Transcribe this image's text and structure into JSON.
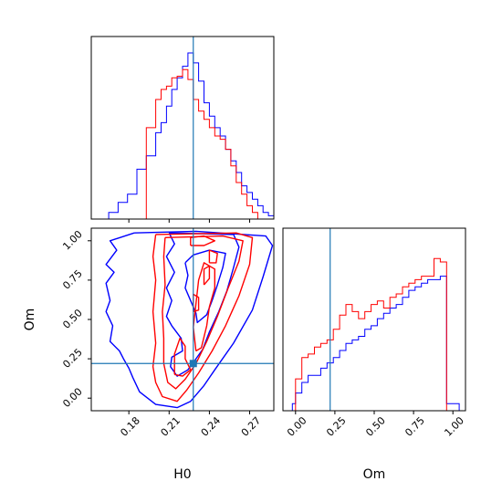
{
  "chart_data": [
    {
      "type": "step-histogram",
      "panel": "H0 marginal",
      "bin_edges": [
        0.165,
        0.172,
        0.179,
        0.186,
        0.193,
        0.2,
        0.204,
        0.208,
        0.212,
        0.216,
        0.22,
        0.224,
        0.228,
        0.232,
        0.236,
        0.24,
        0.244,
        0.248,
        0.252,
        0.256,
        0.26,
        0.264,
        0.268,
        0.272,
        0.276,
        0.28,
        0.284,
        0.288
      ],
      "series": [
        {
          "color": "#0000ff",
          "values": [
            0.04,
            0.1,
            0.15,
            0.3,
            0.38,
            0.52,
            0.58,
            0.68,
            0.78,
            0.85,
            0.92,
            1.0,
            0.94,
            0.83,
            0.7,
            0.62,
            0.55,
            0.5,
            0.42,
            0.35,
            0.28,
            0.2,
            0.16,
            0.12,
            0.08,
            0.04,
            0.02
          ]
        },
        {
          "color": "#ff0000",
          "values": [
            0,
            0,
            0,
            0,
            0.55,
            0.72,
            0.78,
            0.8,
            0.85,
            0.86,
            0.9,
            0.84,
            0.72,
            0.65,
            0.6,
            0.55,
            0.5,
            0.48,
            0.42,
            0.32,
            0.22,
            0.15,
            0.08,
            0.04,
            0,
            0,
            0
          ]
        }
      ],
      "truth_line": 0.228
    },
    {
      "type": "contour",
      "panel": "H0 vs Om",
      "xlabel": "H0",
      "ylabel": "Om",
      "xlim": [
        0.152,
        0.288
      ],
      "ylim": [
        -0.08,
        1.08
      ],
      "xticks": [
        "0.18",
        "0.21",
        "0.24",
        "0.27"
      ],
      "yticks": [
        "0.00",
        "0.25",
        "0.50",
        "0.75",
        "1.00"
      ],
      "truth_point": [
        0.228,
        0.22
      ],
      "contours": [
        {
          "color": "#0000ff",
          "points": [
            [
              0.184,
              1.05
            ],
            [
              0.166,
              1.0
            ],
            [
              0.171,
              0.94
            ],
            [
              0.163,
              0.85
            ],
            [
              0.169,
              0.8
            ],
            [
              0.163,
              0.73
            ],
            [
              0.166,
              0.62
            ],
            [
              0.163,
              0.55
            ],
            [
              0.168,
              0.46
            ],
            [
              0.166,
              0.36
            ],
            [
              0.173,
              0.3
            ],
            [
              0.176,
              0.25
            ],
            [
              0.18,
              0.19
            ],
            [
              0.183,
              0.13
            ],
            [
              0.188,
              0.04
            ],
            [
              0.2,
              -0.04
            ],
            [
              0.216,
              -0.06
            ],
            [
              0.226,
              -0.02
            ],
            [
              0.236,
              0.08
            ],
            [
              0.244,
              0.18
            ],
            [
              0.258,
              0.35
            ],
            [
              0.272,
              0.56
            ],
            [
              0.28,
              0.77
            ],
            [
              0.287,
              0.97
            ],
            [
              0.282,
              1.03
            ],
            [
              0.23,
              1.06
            ],
            [
              0.184,
              1.05
            ]
          ]
        },
        {
          "color": "#0000ff",
          "points": [
            [
              0.21,
              1.05
            ],
            [
              0.214,
              0.98
            ],
            [
              0.208,
              0.9
            ],
            [
              0.214,
              0.8
            ],
            [
              0.208,
              0.7
            ],
            [
              0.212,
              0.62
            ],
            [
              0.208,
              0.52
            ],
            [
              0.212,
              0.46
            ],
            [
              0.219,
              0.38
            ],
            [
              0.22,
              0.3
            ],
            [
              0.212,
              0.26
            ],
            [
              0.211,
              0.2
            ],
            [
              0.216,
              0.14
            ],
            [
              0.224,
              0.18
            ],
            [
              0.23,
              0.25
            ],
            [
              0.235,
              0.31
            ],
            [
              0.24,
              0.42
            ],
            [
              0.247,
              0.55
            ],
            [
              0.253,
              0.68
            ],
            [
              0.258,
              0.83
            ],
            [
              0.262,
              0.96
            ],
            [
              0.258,
              1.04
            ],
            [
              0.21,
              1.05
            ]
          ]
        },
        {
          "color": "#0000ff",
          "points": [
            [
              0.222,
              0.86
            ],
            [
              0.224,
              0.78
            ],
            [
              0.222,
              0.7
            ],
            [
              0.226,
              0.62
            ],
            [
              0.23,
              0.54
            ],
            [
              0.231,
              0.48
            ],
            [
              0.238,
              0.53
            ],
            [
              0.242,
              0.62
            ],
            [
              0.246,
              0.72
            ],
            [
              0.25,
              0.83
            ],
            [
              0.252,
              0.92
            ],
            [
              0.24,
              0.94
            ],
            [
              0.228,
              0.91
            ],
            [
              0.222,
              0.86
            ]
          ]
        },
        {
          "color": "#ff0000",
          "points": [
            [
              0.2,
              1.04
            ],
            [
              0.198,
              0.9
            ],
            [
              0.2,
              0.75
            ],
            [
              0.198,
              0.55
            ],
            [
              0.2,
              0.35
            ],
            [
              0.198,
              0.2
            ],
            [
              0.2,
              0.1
            ],
            [
              0.205,
              0.01
            ],
            [
              0.216,
              -0.02
            ],
            [
              0.223,
              0.05
            ],
            [
              0.232,
              0.16
            ],
            [
              0.242,
              0.3
            ],
            [
              0.252,
              0.46
            ],
            [
              0.262,
              0.65
            ],
            [
              0.27,
              0.85
            ],
            [
              0.272,
              1.02
            ],
            [
              0.26,
              1.05
            ],
            [
              0.2,
              1.04
            ]
          ]
        },
        {
          "color": "#ff0000",
          "points": [
            [
              0.207,
              1.02
            ],
            [
              0.206,
              0.9
            ],
            [
              0.207,
              0.72
            ],
            [
              0.205,
              0.55
            ],
            [
              0.206,
              0.38
            ],
            [
              0.206,
              0.22
            ],
            [
              0.209,
              0.1
            ],
            [
              0.215,
              0.06
            ],
            [
              0.222,
              0.12
            ],
            [
              0.23,
              0.22
            ],
            [
              0.238,
              0.36
            ],
            [
              0.246,
              0.52
            ],
            [
              0.254,
              0.7
            ],
            [
              0.262,
              0.87
            ],
            [
              0.265,
              1.0
            ],
            [
              0.25,
              1.03
            ],
            [
              0.207,
              1.02
            ]
          ]
        },
        {
          "color": "#ff0000",
          "points": [
            [
              0.214,
              0.15
            ],
            [
              0.214,
              0.28
            ],
            [
              0.218,
              0.38
            ],
            [
              0.222,
              0.33
            ],
            [
              0.222,
              0.25
            ],
            [
              0.226,
              0.18
            ],
            [
              0.22,
              0.14
            ],
            [
              0.214,
              0.15
            ]
          ]
        },
        {
          "color": "#ff0000",
          "points": [
            [
              0.23,
              0.3
            ],
            [
              0.228,
              0.45
            ],
            [
              0.23,
              0.6
            ],
            [
              0.232,
              0.75
            ],
            [
              0.236,
              0.86
            ],
            [
              0.244,
              0.82
            ],
            [
              0.244,
              0.7
            ],
            [
              0.24,
              0.58
            ],
            [
              0.238,
              0.46
            ],
            [
              0.234,
              0.32
            ],
            [
              0.23,
              0.3
            ]
          ]
        },
        {
          "color": "#ff0000",
          "points": [
            [
              0.228,
              0.55
            ],
            [
              0.228,
              0.66
            ],
            [
              0.232,
              0.64
            ],
            [
              0.232,
              0.56
            ],
            [
              0.228,
              0.55
            ]
          ]
        },
        {
          "color": "#ff0000",
          "points": [
            [
              0.236,
              0.72
            ],
            [
              0.236,
              0.82
            ],
            [
              0.24,
              0.84
            ],
            [
              0.24,
              0.76
            ],
            [
              0.236,
              0.72
            ]
          ]
        },
        {
          "color": "#ff0000",
          "points": [
            [
              0.24,
              0.86
            ],
            [
              0.24,
              0.94
            ],
            [
              0.246,
              0.92
            ],
            [
              0.245,
              0.86
            ],
            [
              0.24,
              0.86
            ]
          ]
        },
        {
          "color": "#ff0000",
          "points": [
            [
              0.226,
              0.97
            ],
            [
              0.226,
              1.02
            ],
            [
              0.236,
              1.03
            ],
            [
              0.244,
              1.0
            ],
            [
              0.236,
              0.97
            ],
            [
              0.226,
              0.97
            ]
          ]
        }
      ]
    },
    {
      "type": "step-histogram",
      "panel": "Om marginal",
      "xlabel": "Om",
      "xlim": [
        -0.08,
        1.08
      ],
      "xticks": [
        "0.00",
        "0.25",
        "0.50",
        "0.75",
        "1.00"
      ],
      "bin_edges": [
        -0.02,
        0.0,
        0.04,
        0.08,
        0.12,
        0.16,
        0.2,
        0.24,
        0.28,
        0.32,
        0.36,
        0.4,
        0.44,
        0.48,
        0.52,
        0.56,
        0.6,
        0.64,
        0.68,
        0.72,
        0.76,
        0.8,
        0.84,
        0.88,
        0.92,
        0.96,
        1.0,
        1.04
      ],
      "series": [
        {
          "color": "#0000ff",
          "values": [
            0.04,
            0.1,
            0.16,
            0.2,
            0.2,
            0.24,
            0.27,
            0.3,
            0.34,
            0.38,
            0.4,
            0.42,
            0.46,
            0.48,
            0.52,
            0.55,
            0.58,
            0.6,
            0.64,
            0.68,
            0.7,
            0.72,
            0.74,
            0.74,
            0.76,
            0.04,
            0.04
          ]
        },
        {
          "color": "#ff0000",
          "values": [
            0,
            0.18,
            0.3,
            0.32,
            0.36,
            0.38,
            0.4,
            0.46,
            0.54,
            0.6,
            0.56,
            0.52,
            0.56,
            0.6,
            0.62,
            0.58,
            0.64,
            0.66,
            0.7,
            0.72,
            0.74,
            0.76,
            0.76,
            0.86,
            0.84,
            0.0,
            0.0
          ]
        }
      ],
      "truth_line": 0.22
    }
  ]
}
